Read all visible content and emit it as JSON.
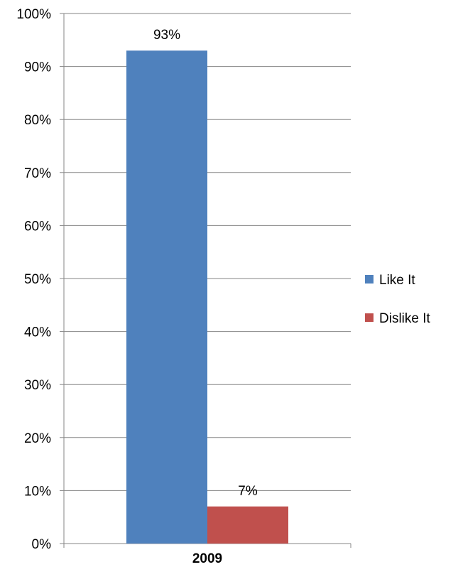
{
  "chart_data": {
    "type": "bar",
    "categories": [
      "2009"
    ],
    "series": [
      {
        "name": "Like It",
        "values": [
          93
        ],
        "color": "#4F81BD",
        "label": "93%"
      },
      {
        "name": "Dislike It",
        "values": [
          7
        ],
        "color": "#C0504D",
        "label": "7%"
      }
    ],
    "ylim": [
      0,
      100
    ],
    "y_ticks": [
      "0%",
      "10%",
      "20%",
      "30%",
      "40%",
      "50%",
      "60%",
      "70%",
      "80%",
      "90%",
      "100%"
    ],
    "y_tick_values": [
      0,
      10,
      20,
      30,
      40,
      50,
      60,
      70,
      80,
      90,
      100
    ],
    "grid": true,
    "legend_position": "right",
    "title": "",
    "xlabel": "",
    "ylabel": ""
  }
}
